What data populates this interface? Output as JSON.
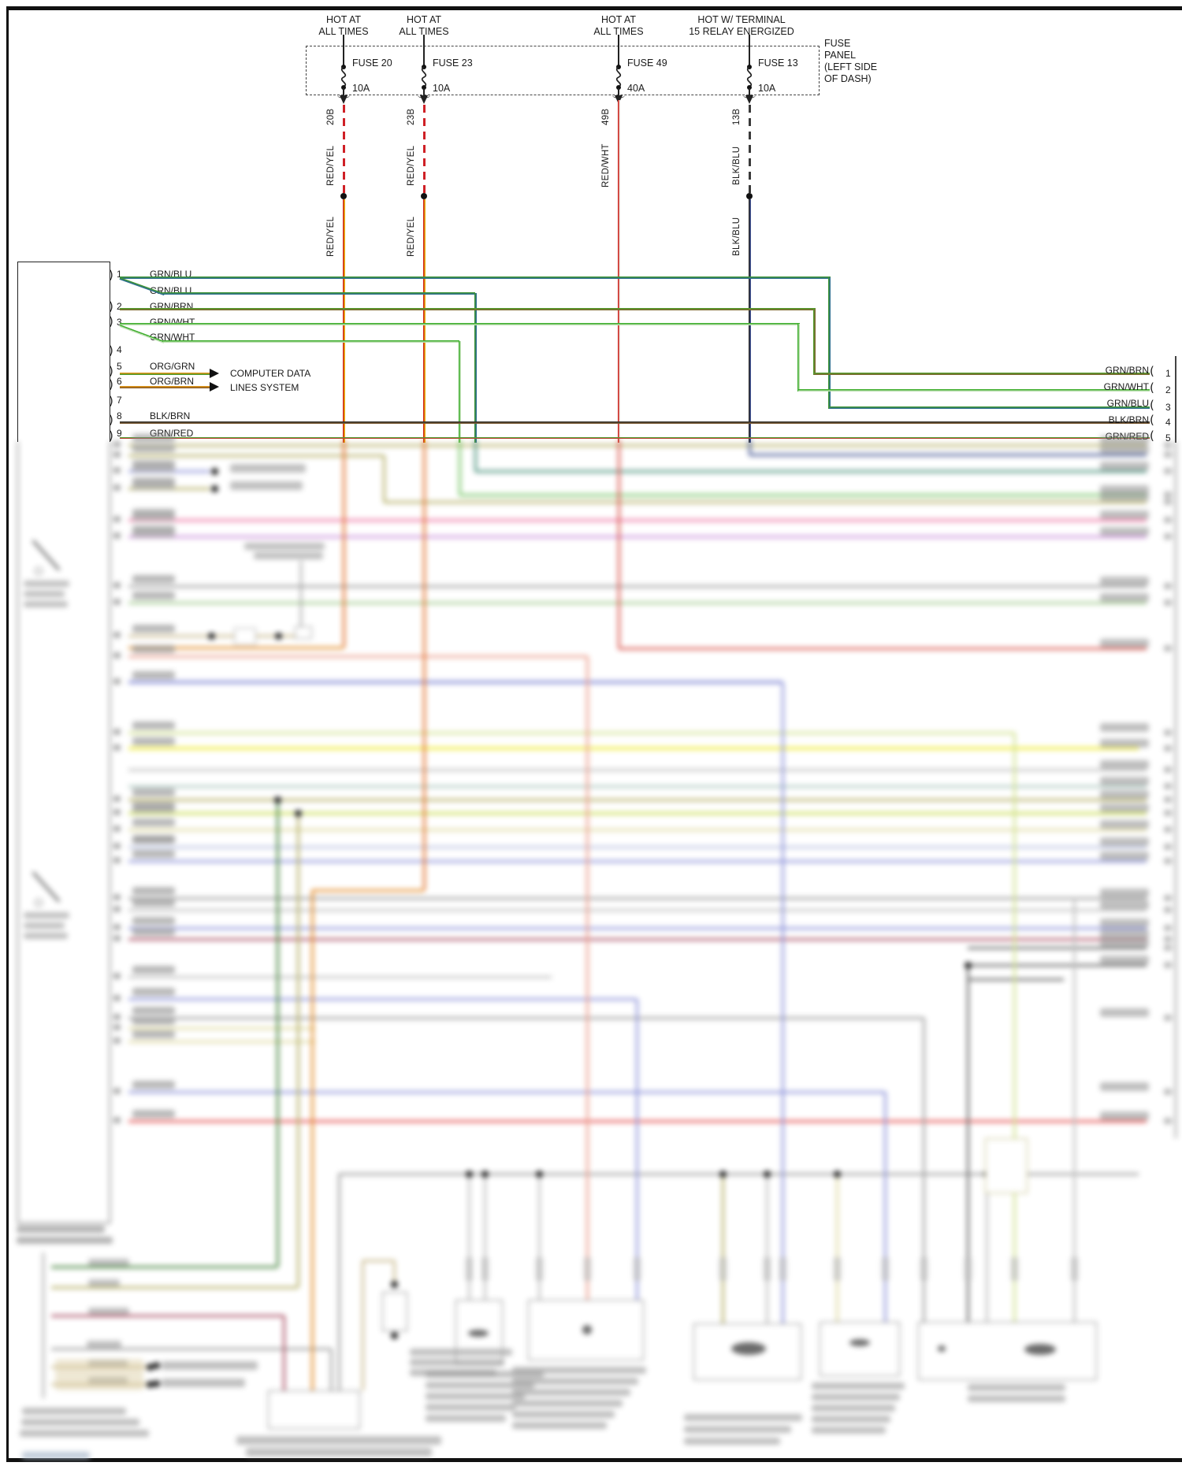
{
  "hot_labels": [
    {
      "line1": "HOT AT",
      "line2": "ALL TIMES"
    },
    {
      "line1": "HOT AT",
      "line2": "ALL TIMES"
    },
    {
      "line1": "HOT AT",
      "line2": "ALL TIMES"
    },
    {
      "line1": "HOT W/ TERMINAL",
      "line2": "15 RELAY ENERGIZED"
    }
  ],
  "fuse_panel": {
    "label_lines": [
      "FUSE",
      "PANEL",
      "(LEFT SIDE",
      "OF DASH)"
    ],
    "fuses": [
      {
        "name": "FUSE 20",
        "rating": "10A",
        "wire": "RED/YEL",
        "circuit": "20B",
        "wire_after_splice": "RED/YEL"
      },
      {
        "name": "FUSE 23",
        "rating": "10A",
        "wire": "RED/YEL",
        "circuit": "23B",
        "wire_after_splice": "RED/YEL"
      },
      {
        "name": "FUSE 49",
        "rating": "40A",
        "wire": "RED/WHT",
        "circuit": "49B"
      },
      {
        "name": "FUSE 13",
        "rating": "10A",
        "wire": "BLK/BLU",
        "circuit": "13B",
        "wire_after_splice": "BLK/BLU"
      }
    ]
  },
  "left_connector": {
    "pins": [
      {
        "num": "1",
        "label": "GRN/BLU",
        "label2": "GRN/BLU"
      },
      {
        "num": "2",
        "label": "GRN/BRN"
      },
      {
        "num": "3",
        "label": "GRN/WHT",
        "label2": "GRN/WHT"
      },
      {
        "num": "4"
      },
      {
        "num": "5",
        "label": "ORG/GRN"
      },
      {
        "num": "6",
        "label": "ORG/BRN"
      },
      {
        "num": "7"
      },
      {
        "num": "8",
        "label": "BLK/BRN"
      },
      {
        "num": "9",
        "label": "GRN/RED"
      }
    ]
  },
  "right_connector": {
    "pins": [
      {
        "num": "1",
        "label": "GRN/BRN"
      },
      {
        "num": "2",
        "label": "GRN/WHT"
      },
      {
        "num": "3",
        "label": "GRN/BLU"
      },
      {
        "num": "4",
        "label": "BLK/BRN"
      },
      {
        "num": "5",
        "label": "GRN/RED"
      }
    ]
  },
  "notes": {
    "computer_data": [
      "COMPUTER DATA",
      "LINES SYSTEM"
    ]
  },
  "colors": {
    "red_yel": "#cf2026",
    "red_wht": "#cc211b",
    "blk_blu": "#3c4d8c",
    "grn_blu": "#2e6f8e",
    "grn_brn": "#7c6a30",
    "grn_wht": "#3fae2e",
    "org_grn": "#dc9418",
    "org_brn": "#8a5a22",
    "blk_brn": "#7a5a34",
    "grn_red": "#bc4434"
  }
}
